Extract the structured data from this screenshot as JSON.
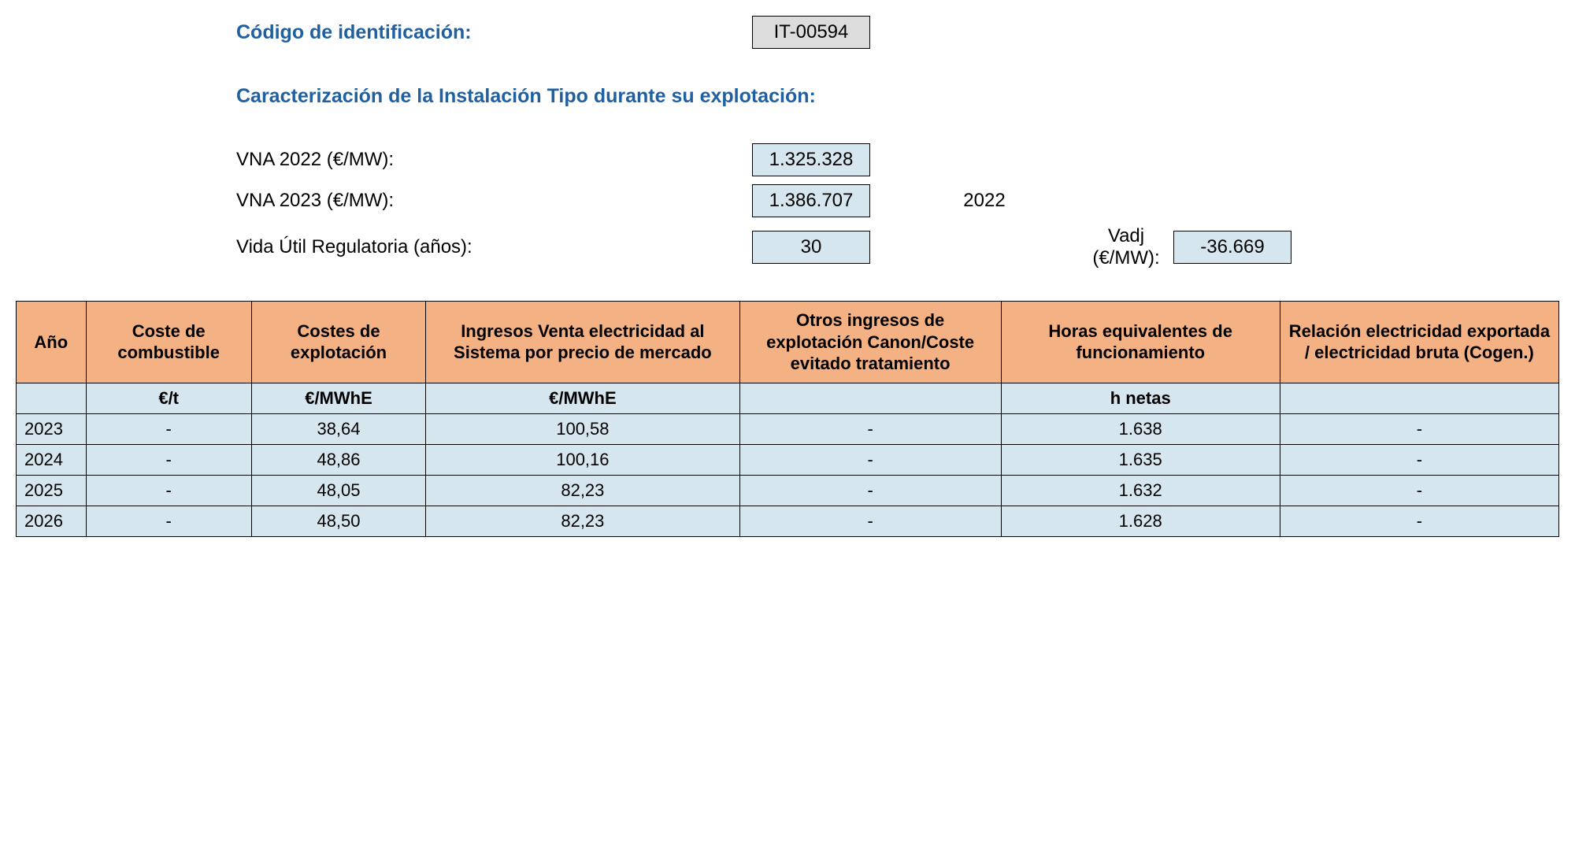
{
  "header": {
    "id_label": "Código de identificación:",
    "id_value": "IT-00594",
    "section_title": "Caracterización de la Instalación Tipo durante su explotación:",
    "fields": [
      {
        "label": "VNA 2022 (€/MW):",
        "value": "1.325.328",
        "year_note": "",
        "vadj_label": "",
        "vadj_value": ""
      },
      {
        "label": "VNA 2023 (€/MW):",
        "value": "1.386.707",
        "year_note": "2022",
        "vadj_label": "",
        "vadj_value": ""
      },
      {
        "label": "Vida Útil Regulatoria (años):",
        "value": "30",
        "year_note": "",
        "vadj_label": "Vadj (€/MW):",
        "vadj_value": "-36.669"
      }
    ]
  },
  "table": {
    "columns": [
      "Año",
      "Coste de combustible",
      "Costes de explotación",
      "Ingresos Venta electricidad al Sistema por precio de mercado",
      "Otros ingresos de explotación Canon/Coste evitado tratamiento",
      "Horas equivalentes de funcionamiento",
      "Relación electricidad exportada / electricidad bruta (Cogen.)"
    ],
    "units": [
      "",
      "€/t",
      "€/MWhE",
      "€/MWhE",
      "",
      "h netas",
      ""
    ],
    "rows": [
      [
        "2023",
        "-",
        "38,64",
        "100,58",
        "-",
        "1.638",
        "-"
      ],
      [
        "2024",
        "-",
        "48,86",
        "100,16",
        "-",
        "1.635",
        "-"
      ],
      [
        "2025",
        "-",
        "48,05",
        "82,23",
        "-",
        "1.632",
        "-"
      ],
      [
        "2026",
        "-",
        "48,50",
        "82,23",
        "-",
        "1.628",
        "-"
      ]
    ],
    "header_bg": "#f4b183",
    "cell_bg": "#d6e6ee",
    "border_color": "#000000",
    "heading_color": "#2060a0",
    "id_box_bg": "#dcdcdc"
  }
}
